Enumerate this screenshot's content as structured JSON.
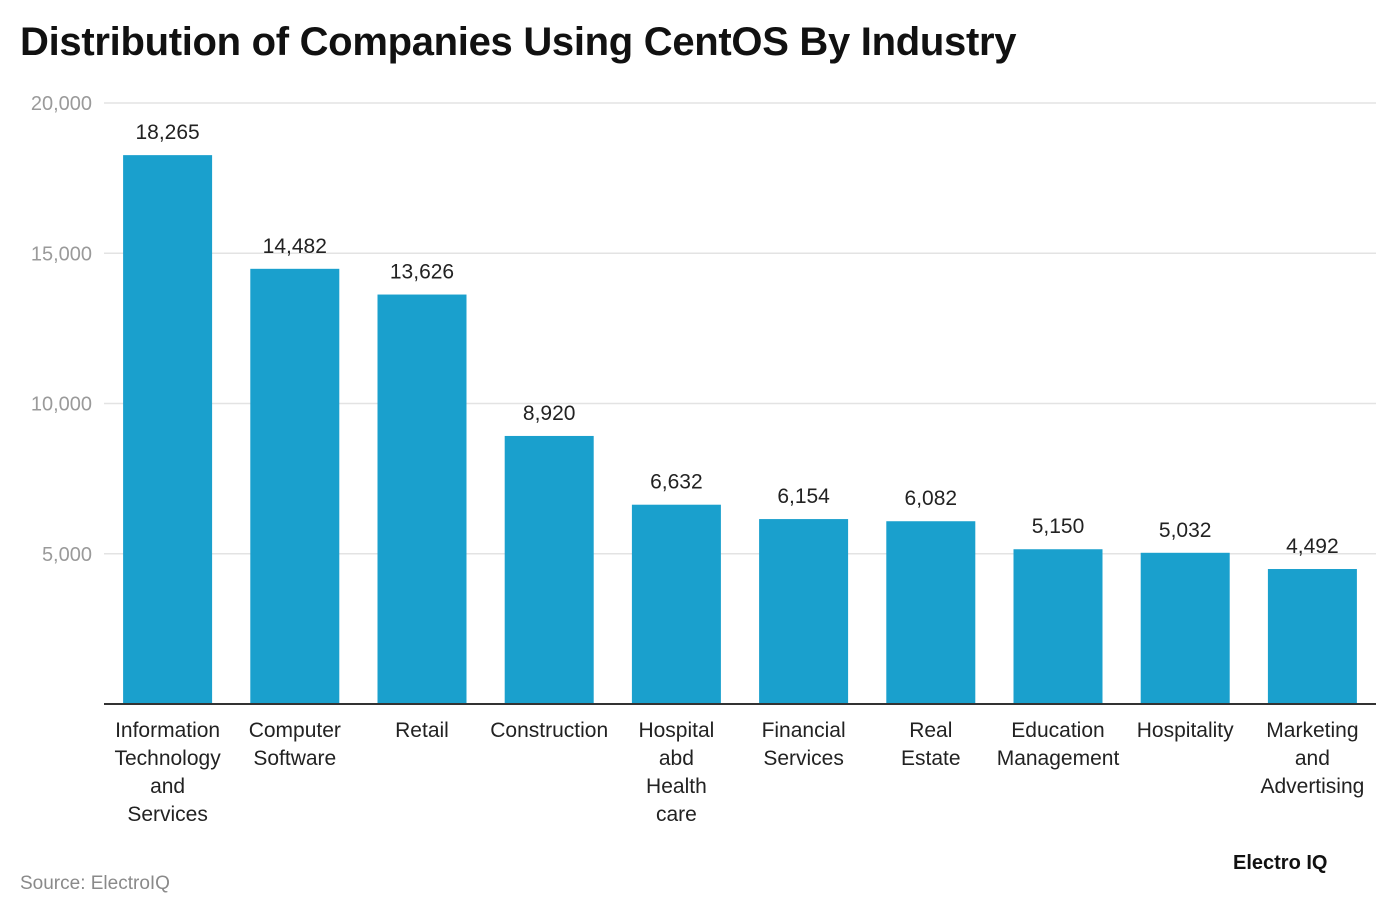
{
  "title": "Distribution of Companies Using CentOS By Industry",
  "source": "Source: ElectroIQ",
  "brand": "Electro IQ",
  "colors": {
    "bar": "#1aa0cd",
    "grid": "#e3e3e3",
    "axis": "#333333",
    "tick": "#9a9a9a",
    "label": "#222222"
  },
  "chart_data": {
    "type": "bar",
    "title": "Distribution of Companies Using CentOS By Industry",
    "xlabel": "",
    "ylabel": "",
    "ylim": [
      0,
      20000
    ],
    "yticks": [
      5000,
      10000,
      15000,
      20000
    ],
    "ytick_labels": [
      "5,000",
      "10,000",
      "15,000",
      "20,000"
    ],
    "categories": [
      "Information Technology and Services",
      "Computer Software",
      "Retail",
      "Construction",
      "Hospital abd Health care",
      "Financial Services",
      "Real Estate",
      "Education Management",
      "Hospitality",
      "Marketing and Advertising"
    ],
    "category_lines": [
      [
        "Information",
        "Technology",
        "and",
        "Services"
      ],
      [
        "Computer",
        "Software"
      ],
      [
        "Retail"
      ],
      [
        "Construction"
      ],
      [
        "Hospital",
        "abd",
        "Health",
        "care"
      ],
      [
        "Financial",
        "Services"
      ],
      [
        "Real",
        "Estate"
      ],
      [
        "Education",
        "Management"
      ],
      [
        "Hospitality"
      ],
      [
        "Marketing",
        "and",
        "Advertising"
      ]
    ],
    "values": [
      18265,
      14482,
      13626,
      8920,
      6632,
      6154,
      6082,
      5150,
      5032,
      4492
    ],
    "value_labels": [
      "18,265",
      "14,482",
      "13,626",
      "8,920",
      "6,632",
      "6,154",
      "6,082",
      "5,150",
      "5,032",
      "4,492"
    ],
    "grid": true,
    "legend": "none"
  }
}
